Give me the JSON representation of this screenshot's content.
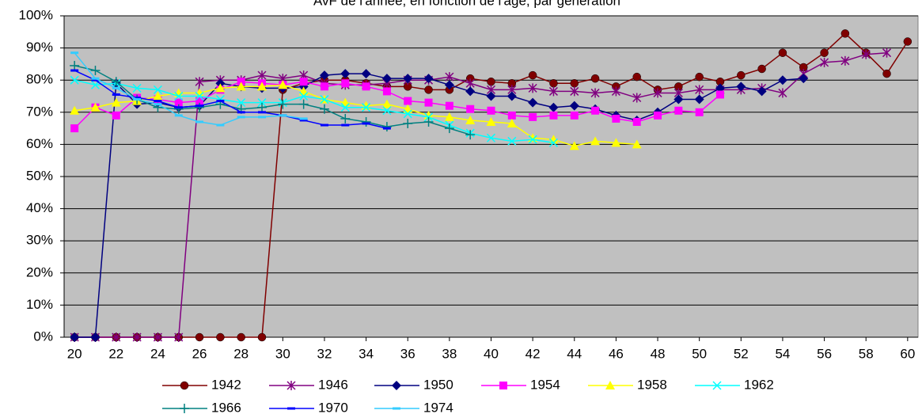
{
  "chart_data": {
    "type": "line",
    "title": "AvF de l'année, en fonction de l'âge, par génération",
    "x": [
      20,
      21,
      22,
      23,
      24,
      25,
      26,
      27,
      28,
      29,
      30,
      31,
      32,
      33,
      34,
      35,
      36,
      37,
      38,
      39,
      40,
      41,
      42,
      43,
      44,
      45,
      46,
      47,
      48,
      49,
      50,
      51,
      52,
      53,
      54,
      55,
      56,
      57,
      58,
      59,
      60
    ],
    "xlim": [
      19.5,
      60.5
    ],
    "xticks": [
      20,
      22,
      24,
      26,
      28,
      30,
      32,
      34,
      36,
      38,
      40,
      42,
      44,
      46,
      48,
      50,
      52,
      54,
      56,
      58,
      60
    ],
    "ylim": [
      0,
      100
    ],
    "yticks": [
      {
        "value": 0,
        "label": "0%"
      },
      {
        "value": 10,
        "label": "10%"
      },
      {
        "value": 20,
        "label": "20%"
      },
      {
        "value": 30,
        "label": "30%"
      },
      {
        "value": 40,
        "label": "40%"
      },
      {
        "value": 50,
        "label": "50%"
      },
      {
        "value": 60,
        "label": "60%"
      },
      {
        "value": 70,
        "label": "70%"
      },
      {
        "value": 80,
        "label": "80%"
      },
      {
        "value": 90,
        "label": "90%"
      },
      {
        "value": 100,
        "label": "100%"
      }
    ],
    "grid": true,
    "series": [
      {
        "name": "1942",
        "color": "#800000",
        "marker": "circle",
        "values": [
          0,
          0,
          0,
          0,
          0,
          0,
          0,
          0,
          0,
          0,
          77,
          79,
          80,
          80,
          79,
          78,
          78,
          77,
          77,
          80.5,
          79.5,
          79,
          81.5,
          79,
          79,
          80.5,
          78,
          81,
          77,
          78,
          81,
          79.5,
          81.5,
          83.5,
          88.5,
          84,
          88.5,
          94.5,
          88.5,
          82,
          92
        ]
      },
      {
        "name": "1946",
        "color": "#800080",
        "marker": "asterisk",
        "values": [
          0,
          0,
          0,
          0,
          0,
          0,
          79.5,
          80,
          80,
          81.5,
          80.5,
          81.5,
          79,
          78.5,
          78.5,
          79,
          80,
          80,
          81,
          79,
          77,
          77,
          77.5,
          76.5,
          76.5,
          76,
          76.5,
          74.5,
          76,
          76,
          77,
          77,
          77,
          77.5,
          76,
          82,
          85.5,
          86,
          88,
          88.5,
          null
        ]
      },
      {
        "name": "1950",
        "color": "#000080",
        "marker": "diamond",
        "values": [
          0,
          0,
          79,
          72.5,
          73,
          71.5,
          72,
          79,
          78,
          77.5,
          77.5,
          78,
          81.5,
          82,
          82,
          80.5,
          80.5,
          80.5,
          78.5,
          76.5,
          75,
          75,
          73,
          71.5,
          72,
          71,
          69,
          67.5,
          70,
          74,
          74,
          77.5,
          78,
          76.5,
          80,
          80.5,
          null,
          null,
          null,
          null,
          null
        ]
      },
      {
        "name": "1954",
        "color": "#FF00FF",
        "marker": "square",
        "values": [
          65,
          71.5,
          69,
          74.5,
          74,
          73,
          73.5,
          77,
          79.5,
          79,
          78.5,
          79.5,
          78,
          79,
          78,
          76.5,
          73.5,
          73,
          72,
          71,
          70.5,
          69,
          68.5,
          69,
          69,
          70.5,
          68,
          67,
          69,
          70.5,
          70,
          75.5,
          null,
          null,
          null,
          null,
          null,
          null,
          null,
          null,
          null
        ]
      },
      {
        "name": "1958",
        "color": "#FFFF00",
        "marker": "triangle",
        "values": [
          70.5,
          71.5,
          73,
          73.5,
          75,
          76,
          76,
          77.5,
          78,
          78,
          78.5,
          76.5,
          74,
          73,
          72,
          72.5,
          71,
          69,
          68.5,
          67.5,
          67,
          66.5,
          62,
          61.5,
          59.5,
          61,
          60.5,
          60,
          null,
          null,
          null,
          null,
          null,
          null,
          null,
          null,
          null,
          null,
          null,
          null,
          null
        ]
      },
      {
        "name": "1962",
        "color": "#00FFFF",
        "marker": "x",
        "values": [
          80,
          78.5,
          79,
          77.5,
          77,
          75,
          75,
          74,
          73,
          73,
          73,
          75,
          74,
          71.5,
          71.5,
          70.5,
          69.5,
          68.5,
          66,
          63.5,
          62,
          61,
          61.5,
          60.5,
          null,
          null,
          null,
          null,
          null,
          null,
          null,
          null,
          null,
          null,
          null,
          null,
          null,
          null,
          null,
          null,
          null
        ]
      },
      {
        "name": "1966",
        "color": "#008080",
        "marker": "plus",
        "values": [
          84.5,
          83,
          79.5,
          74,
          71.5,
          71,
          71.5,
          72.5,
          71,
          71.5,
          72.5,
          72.5,
          71,
          68,
          67,
          65.5,
          66.5,
          67,
          65,
          63,
          null,
          null,
          null,
          null,
          null,
          null,
          null,
          null,
          null,
          null,
          null,
          null,
          null,
          null,
          null,
          null,
          null,
          null,
          null,
          null,
          null
        ]
      },
      {
        "name": "1970",
        "color": "#0000FF",
        "marker": "dash",
        "values": [
          83,
          80,
          75.5,
          74.5,
          73.5,
          71.5,
          72,
          73.5,
          70,
          70,
          69,
          67.5,
          66,
          66,
          66.5,
          65,
          null,
          null,
          null,
          null,
          null,
          null,
          null,
          null,
          null,
          null,
          null,
          null,
          null,
          null,
          null,
          null,
          null,
          null,
          null,
          null,
          null,
          null,
          null,
          null,
          null
        ]
      },
      {
        "name": "1974",
        "color": "#33CCFF",
        "marker": "dash",
        "values": [
          88.5,
          80.5,
          77.5,
          74,
          72.5,
          69,
          67,
          66,
          68.5,
          68.5,
          69,
          68,
          null,
          null,
          null,
          null,
          null,
          null,
          null,
          null,
          null,
          null,
          null,
          null,
          null,
          null,
          null,
          null,
          null,
          null,
          null,
          null,
          null,
          null,
          null,
          null,
          null,
          null,
          null,
          null,
          null
        ]
      }
    ]
  }
}
